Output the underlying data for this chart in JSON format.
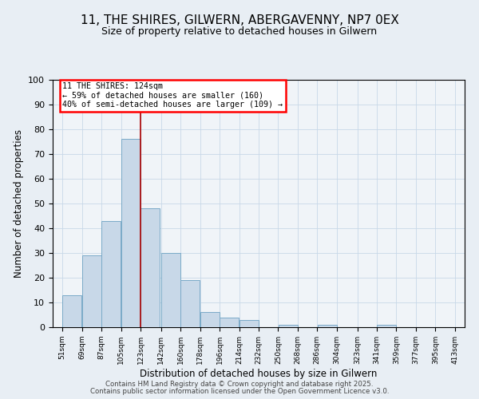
{
  "title": "11, THE SHIRES, GILWERN, ABERGAVENNY, NP7 0EX",
  "subtitle": "Size of property relative to detached houses in Gilwern",
  "xlabel": "Distribution of detached houses by size in Gilwern",
  "ylabel": "Number of detached properties",
  "bar_values": [
    13,
    29,
    43,
    76,
    48,
    30,
    19,
    6,
    4,
    3,
    0,
    1,
    0,
    1,
    0,
    0,
    1
  ],
  "bin_starts": [
    51,
    69,
    87,
    105,
    123,
    142,
    160,
    178,
    196,
    214,
    232,
    250,
    268,
    286,
    304,
    323,
    341
  ],
  "bin_width": 18,
  "tick_positions": [
    51,
    69,
    87,
    105,
    123,
    142,
    160,
    178,
    196,
    214,
    232,
    250,
    268,
    286,
    304,
    323,
    341,
    359,
    377,
    395,
    413
  ],
  "tick_labels": [
    "51sqm",
    "69sqm",
    "87sqm",
    "105sqm",
    "123sqm",
    "142sqm",
    "160sqm",
    "178sqm",
    "196sqm",
    "214sqm",
    "232sqm",
    "250sqm",
    "268sqm",
    "286sqm",
    "304sqm",
    "323sqm",
    "341sqm",
    "359sqm",
    "377sqm",
    "395sqm",
    "413sqm"
  ],
  "xlim": [
    42,
    422
  ],
  "ylim": [
    0,
    100
  ],
  "bar_color": "#c8d8e8",
  "bar_edge_color": "#7aaac8",
  "vline_x": 123,
  "vline_color": "#aa0000",
  "annotation_title": "11 THE SHIRES: 124sqm",
  "annotation_line1": "← 59% of detached houses are smaller (160)",
  "annotation_line2": "40% of semi-detached houses are larger (109) →",
  "grid_color": "#c8d8e8",
  "background_color": "#e8eef4",
  "plot_bg_color": "#f0f4f8",
  "footer1": "Contains HM Land Registry data © Crown copyright and database right 2025.",
  "footer2": "Contains public sector information licensed under the Open Government Licence v3.0."
}
